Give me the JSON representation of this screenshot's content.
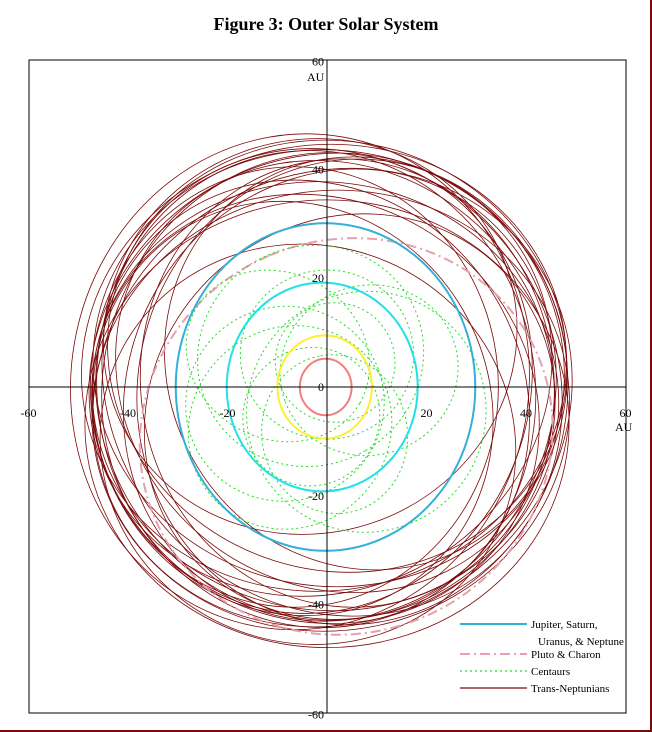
{
  "chart_data": {
    "type": "line",
    "title": "Figure 3:  Outer Solar System",
    "x_unit": "AU",
    "y_unit": "AU",
    "xlim": [
      -60,
      60
    ],
    "ylim": [
      -60,
      60
    ],
    "x_ticks": [
      -60,
      -40,
      -20,
      0,
      20,
      40,
      60
    ],
    "y_ticks": [
      60,
      40,
      20,
      0,
      -20,
      -40,
      -60
    ],
    "grid": false,
    "legend_position": "bottom-right",
    "colors": {
      "giants": "#33b0d8",
      "pluto": "#e6a0b0",
      "centaurs": "#22dd22",
      "tno": "#7a0a0a"
    },
    "planets": [
      {
        "name": "Jupiter",
        "a": 5.2,
        "e": 0.05,
        "color": "#f08080"
      },
      {
        "name": "Saturn",
        "a": 9.5,
        "e": 0.05,
        "color": "#ffee33"
      },
      {
        "name": "Uranus",
        "a": 19.2,
        "e": 0.05,
        "color": "#22e0e8"
      },
      {
        "name": "Neptune",
        "a": 30.1,
        "e": 0.01,
        "color": "#33b0d8"
      }
    ],
    "pluto_orbit": {
      "a": 39.5,
      "e": 0.25,
      "omega_deg": 113
    },
    "centaurs": [
      {
        "a": 20,
        "e": 0.45,
        "omega_deg": 20
      },
      {
        "a": 16,
        "e": 0.55,
        "omega_deg": 100
      },
      {
        "a": 18,
        "e": 0.5,
        "omega_deg": 200
      },
      {
        "a": 22,
        "e": 0.3,
        "omega_deg": 300
      },
      {
        "a": 14,
        "e": 0.45,
        "omega_deg": 60
      },
      {
        "a": 24,
        "e": 0.38,
        "omega_deg": 150
      },
      {
        "a": 12,
        "e": 0.4,
        "omega_deg": 250
      },
      {
        "a": 19,
        "e": 0.6,
        "omega_deg": 330
      },
      {
        "a": 17,
        "e": 0.35,
        "omega_deg": 270
      },
      {
        "a": 21,
        "e": 0.5,
        "omega_deg": 45
      }
    ],
    "tnos": [
      {
        "a": 44.0,
        "e": 0.05,
        "omega_deg": 10
      },
      {
        "a": 43.0,
        "e": 0.04,
        "omega_deg": 80
      },
      {
        "a": 42.5,
        "e": 0.07,
        "omega_deg": 150
      },
      {
        "a": 44.5,
        "e": 0.03,
        "omega_deg": 220
      },
      {
        "a": 43.5,
        "e": 0.06,
        "omega_deg": 300
      },
      {
        "a": 42.0,
        "e": 0.09,
        "omega_deg": 40
      },
      {
        "a": 45.0,
        "e": 0.05,
        "omega_deg": 120
      },
      {
        "a": 41.5,
        "e": 0.1,
        "omega_deg": 190
      },
      {
        "a": 43.8,
        "e": 0.08,
        "omega_deg": 260
      },
      {
        "a": 42.8,
        "e": 0.05,
        "omega_deg": 340
      },
      {
        "a": 44.2,
        "e": 0.1,
        "omega_deg": 100
      },
      {
        "a": 43.2,
        "e": 0.12,
        "omega_deg": 170
      },
      {
        "a": 41.8,
        "e": 0.06,
        "omega_deg": 230
      },
      {
        "a": 44.8,
        "e": 0.08,
        "omega_deg": 280
      },
      {
        "a": 42.2,
        "e": 0.11,
        "omega_deg": 60
      },
      {
        "a": 43.0,
        "e": 0.14,
        "omega_deg": 250
      },
      {
        "a": 39.5,
        "e": 0.2,
        "omega_deg": 30
      },
      {
        "a": 39.5,
        "e": 0.22,
        "omega_deg": 210
      },
      {
        "a": 39.5,
        "e": 0.25,
        "omega_deg": 290
      },
      {
        "a": 39.5,
        "e": 0.18,
        "omega_deg": 130
      },
      {
        "a": 40.0,
        "e": 0.28,
        "omega_deg": 70
      },
      {
        "a": 45.0,
        "e": 0.15,
        "omega_deg": 90
      },
      {
        "a": 46.0,
        "e": 0.12,
        "omega_deg": 350
      },
      {
        "a": 41.0,
        "e": 0.16,
        "omega_deg": 0
      }
    ],
    "legend": [
      {
        "key": "giants",
        "lines": [
          "Jupiter, Saturn,",
          "Uranus, & Neptune"
        ],
        "style": "solid"
      },
      {
        "key": "pluto",
        "lines": [
          "Pluto & Charon"
        ],
        "style": "dashdot"
      },
      {
        "key": "centaurs",
        "lines": [
          "Centaurs"
        ],
        "style": "dotted"
      },
      {
        "key": "tno",
        "lines": [
          "Trans-Neptunians"
        ],
        "style": "solid"
      }
    ]
  }
}
